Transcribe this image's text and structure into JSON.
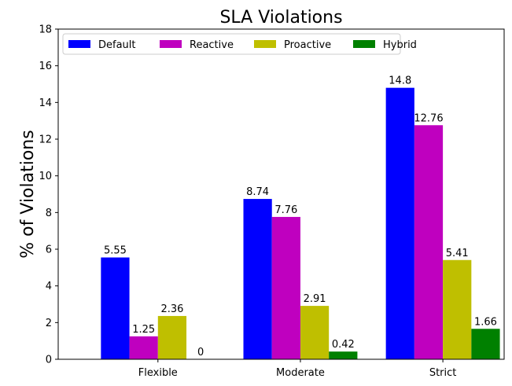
{
  "chart_data": {
    "type": "bar",
    "title": "SLA Violations",
    "xlabel": "",
    "ylabel": "% of Violations",
    "categories": [
      "Flexible",
      "Moderate",
      "Strict"
    ],
    "series": [
      {
        "name": "Default",
        "color": "#0000ff",
        "values": [
          5.55,
          8.74,
          14.8
        ]
      },
      {
        "name": "Reactive",
        "color": "#bf00bf",
        "values": [
          1.25,
          7.76,
          12.76
        ]
      },
      {
        "name": "Proactive",
        "color": "#bfbf00",
        "values": [
          2.36,
          2.91,
          5.41
        ]
      },
      {
        "name": "Hybrid",
        "color": "#008000",
        "values": [
          0,
          0.42,
          1.66
        ]
      }
    ],
    "data_labels": [
      [
        "5.55",
        "8.74",
        "14.8"
      ],
      [
        "1.25",
        "7.76",
        "12.76"
      ],
      [
        "2.36",
        "2.91",
        "5.41"
      ],
      [
        "0",
        "0.42",
        "1.66"
      ]
    ],
    "ylim": [
      0,
      18
    ],
    "yticks": [
      0,
      2,
      4,
      6,
      8,
      10,
      12,
      14,
      16,
      18
    ],
    "ytick_labels": [
      "0",
      "2",
      "4",
      "6",
      "8",
      "10",
      "12",
      "14",
      "16",
      "18"
    ],
    "legend_position": "top-left",
    "legend_columns": 4,
    "grid": false
  }
}
